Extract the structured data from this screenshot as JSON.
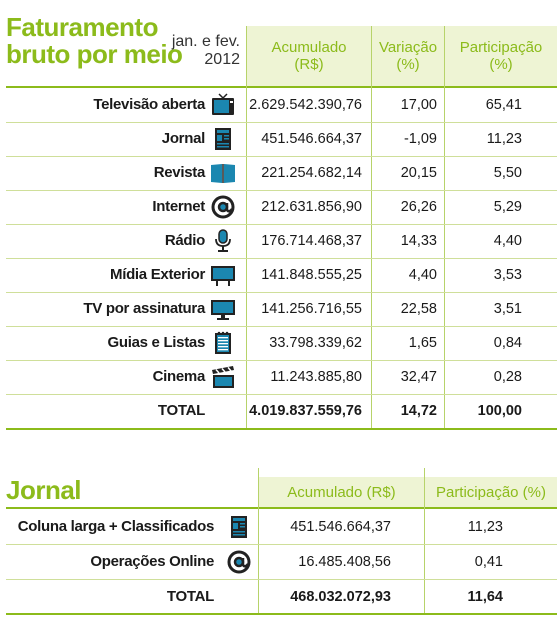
{
  "table1": {
    "title_line1": "Faturamento",
    "title_line2": "bruto por meio",
    "period_line1": "jan. e fev.",
    "period_line2": "2012",
    "headers": {
      "acumulado_line1": "Acumulado",
      "acumulado_line2": "(R$)",
      "variacao_line1": "Variação",
      "variacao_line2": "(%)",
      "participacao_line1": "Participação",
      "participacao_line2": "(%)"
    },
    "rows": [
      {
        "label": "Televisão aberta",
        "icon": "tv-icon",
        "acumulado": "2.629.542.390,76",
        "variacao": "17,00",
        "participacao": "65,41"
      },
      {
        "label": "Jornal",
        "icon": "newspaper-icon",
        "acumulado": "451.546.664,37",
        "variacao": "-1,09",
        "participacao": "11,23"
      },
      {
        "label": "Revista",
        "icon": "magazine-icon",
        "acumulado": "221.254.682,14",
        "variacao": "20,15",
        "participacao": "5,50"
      },
      {
        "label": "Internet",
        "icon": "at-sign-icon",
        "acumulado": "212.631.856,90",
        "variacao": "26,26",
        "participacao": "5,29"
      },
      {
        "label": "Rádio",
        "icon": "microphone-icon",
        "acumulado": "176.714.468,37",
        "variacao": "14,33",
        "participacao": "4,40"
      },
      {
        "label": "Mídia Exterior",
        "icon": "billboard-icon",
        "acumulado": "141.848.555,25",
        "variacao": "4,40",
        "participacao": "3,53"
      },
      {
        "label": "TV por assinatura",
        "icon": "monitor-icon",
        "acumulado": "141.256.716,55",
        "variacao": "22,58",
        "participacao": "3,51"
      },
      {
        "label": "Guias e Listas",
        "icon": "directory-icon",
        "acumulado": "33.798.339,62",
        "variacao": "1,65",
        "participacao": "0,84"
      },
      {
        "label": "Cinema",
        "icon": "clapperboard-icon",
        "acumulado": "11.243.885,80",
        "variacao": "32,47",
        "participacao": "0,28"
      }
    ],
    "total": {
      "label": "TOTAL",
      "acumulado": "4.019.837.559,76",
      "variacao": "14,72",
      "participacao": "100,00"
    }
  },
  "table2": {
    "title": "Jornal",
    "headers": {
      "acumulado": "Acumulado (R$)",
      "participacao": "Participação (%)"
    },
    "rows": [
      {
        "label": "Coluna larga + Classificados",
        "icon": "newspaper-icon",
        "acumulado": "451.546.664,37",
        "participacao": "11,23"
      },
      {
        "label": "Operações Online",
        "icon": "at-sign-icon",
        "acumulado": "16.485.408,56",
        "participacao": "0,41"
      }
    ],
    "total": {
      "label": "TOTAL",
      "acumulado": "468.032.072,93",
      "participacao": "11,64"
    }
  },
  "colors": {
    "accent": "#8cbb1b",
    "header_bg": "#eef4d4",
    "icon": "#1b87b0"
  },
  "chart_data": [
    {
      "type": "table",
      "title": "Faturamento bruto por meio",
      "subtitle": "jan. e fev. 2012",
      "columns": [
        "Acumulado (R$)",
        "Variação (%)",
        "Participação (%)"
      ],
      "categories": [
        "Televisão aberta",
        "Jornal",
        "Revista",
        "Internet",
        "Rádio",
        "Mídia Exterior",
        "TV por assinatura",
        "Guias e Listas",
        "Cinema",
        "TOTAL"
      ],
      "series": [
        {
          "name": "Acumulado (R$)",
          "values": [
            2629542390.76,
            451546664.37,
            221254682.14,
            212631856.9,
            176714468.37,
            141848555.25,
            141256716.55,
            33798339.62,
            11243885.8,
            4019837559.76
          ]
        },
        {
          "name": "Variação (%)",
          "values": [
            17.0,
            -1.09,
            20.15,
            26.26,
            14.33,
            4.4,
            22.58,
            1.65,
            32.47,
            14.72
          ]
        },
        {
          "name": "Participação (%)",
          "values": [
            65.41,
            11.23,
            5.5,
            5.29,
            4.4,
            3.53,
            3.51,
            0.84,
            0.28,
            100.0
          ]
        }
      ]
    },
    {
      "type": "table",
      "title": "Jornal",
      "columns": [
        "Acumulado (R$)",
        "Participação (%)"
      ],
      "categories": [
        "Coluna larga + Classificados",
        "Operações Online",
        "TOTAL"
      ],
      "series": [
        {
          "name": "Acumulado (R$)",
          "values": [
            451546664.37,
            16485408.56,
            468032072.93
          ]
        },
        {
          "name": "Participação (%)",
          "values": [
            11.23,
            0.41,
            11.64
          ]
        }
      ]
    }
  ]
}
